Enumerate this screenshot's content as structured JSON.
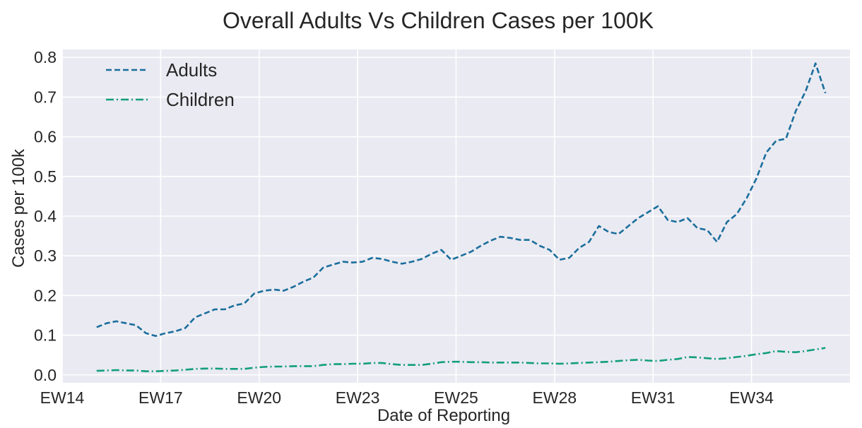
{
  "chart_data": {
    "type": "line",
    "title": "Overall Adults Vs Children Cases per 100K",
    "xlabel": "Date of Reporting",
    "ylabel": "Cases per 100k",
    "ylim": [
      -0.02,
      0.82
    ],
    "yticks": [
      0.0,
      0.1,
      0.2,
      0.3,
      0.4,
      0.5,
      0.6,
      0.7,
      0.8
    ],
    "xticks": [
      "EW14",
      "EW17",
      "EW20",
      "EW23",
      "EW25",
      "EW28",
      "EW31",
      "EW34"
    ],
    "xtick_index": [
      0,
      20,
      40,
      60,
      80,
      100,
      120,
      140
    ],
    "xlim": [
      0,
      160
    ],
    "grid": true,
    "legend_position": "top-left",
    "colors": {
      "background": "#EAEAF2",
      "grid": "#FFFFFF",
      "adults": "#1A6E9C",
      "children": "#129E7C"
    },
    "x": [
      7,
      9,
      11,
      13,
      15,
      17,
      19,
      21,
      23,
      25,
      27,
      29,
      31,
      33,
      35,
      37,
      39,
      41,
      43,
      45,
      47,
      49,
      51,
      53,
      55,
      57,
      59,
      61,
      63,
      65,
      67,
      69,
      71,
      73,
      75,
      77,
      79,
      81,
      83,
      85,
      87,
      89,
      91,
      93,
      95,
      97,
      99,
      101,
      103,
      105,
      107,
      109,
      111,
      113,
      115,
      117,
      119,
      121,
      123,
      125,
      127,
      129,
      131,
      133,
      135,
      137,
      139,
      141,
      143,
      145,
      147,
      149,
      151,
      153,
      155
    ],
    "series": [
      {
        "name": "Adults",
        "style": "dashed",
        "values": [
          0.12,
          0.13,
          0.135,
          0.13,
          0.125,
          0.105,
          0.098,
          0.105,
          0.11,
          0.118,
          0.145,
          0.155,
          0.165,
          0.165,
          0.175,
          0.18,
          0.205,
          0.212,
          0.215,
          0.212,
          0.222,
          0.235,
          0.245,
          0.27,
          0.278,
          0.285,
          0.283,
          0.285,
          0.295,
          0.292,
          0.285,
          0.28,
          0.285,
          0.292,
          0.305,
          0.315,
          0.29,
          0.3,
          0.31,
          0.325,
          0.338,
          0.348,
          0.345,
          0.34,
          0.34,
          0.325,
          0.315,
          0.29,
          0.295,
          0.32,
          0.335,
          0.375,
          0.36,
          0.355,
          0.375,
          0.395,
          0.41,
          0.425,
          0.39,
          0.385,
          0.395,
          0.37,
          0.365,
          0.335,
          0.385,
          0.405,
          0.445,
          0.495,
          0.56,
          0.59,
          0.595,
          0.665,
          0.715,
          0.785,
          0.71
        ]
      },
      {
        "name": "Children",
        "style": "dashdot",
        "values": [
          0.01,
          0.011,
          0.012,
          0.011,
          0.011,
          0.009,
          0.009,
          0.01,
          0.011,
          0.013,
          0.015,
          0.016,
          0.016,
          0.015,
          0.015,
          0.015,
          0.018,
          0.02,
          0.021,
          0.021,
          0.022,
          0.022,
          0.022,
          0.025,
          0.027,
          0.027,
          0.028,
          0.028,
          0.03,
          0.03,
          0.027,
          0.025,
          0.025,
          0.025,
          0.028,
          0.032,
          0.033,
          0.033,
          0.032,
          0.032,
          0.031,
          0.031,
          0.031,
          0.031,
          0.03,
          0.029,
          0.029,
          0.028,
          0.029,
          0.03,
          0.031,
          0.032,
          0.033,
          0.035,
          0.037,
          0.038,
          0.036,
          0.035,
          0.038,
          0.04,
          0.045,
          0.044,
          0.042,
          0.04,
          0.042,
          0.045,
          0.048,
          0.052,
          0.055,
          0.06,
          0.058,
          0.057,
          0.06,
          0.064,
          0.068
        ]
      }
    ]
  }
}
